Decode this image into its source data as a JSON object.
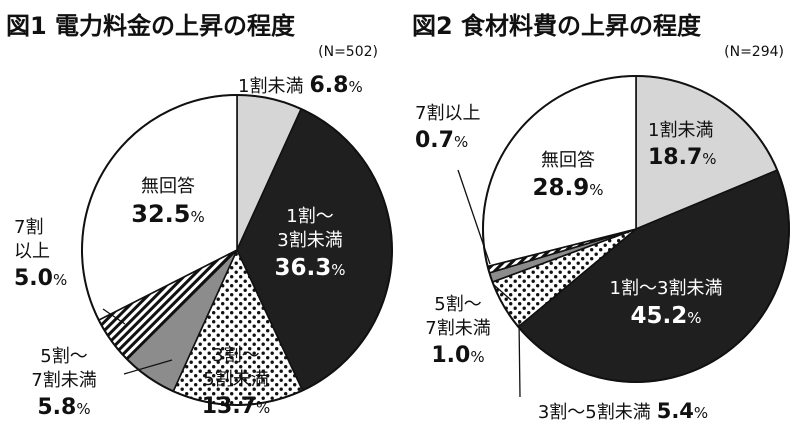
{
  "colors": {
    "ink": "#111111",
    "light_gray": "#d6d6d6",
    "black": "#1f1f1f",
    "dark_gray": "#8c8c8c",
    "white": "#ffffff"
  },
  "chart_data": [
    {
      "type": "pie",
      "title": "図1 電力料金の上昇の程度",
      "n_label": "(N=502)",
      "slices": [
        {
          "label": "1割未満",
          "value": 6.8,
          "value_text": "6.8",
          "fill": "light-gray"
        },
        {
          "label": "1割～3割未満",
          "value": 36.3,
          "value_text": "36.3",
          "fill": "black"
        },
        {
          "label": "3割～5割未満",
          "value": 13.7,
          "value_text": "13.7",
          "fill": "dots"
        },
        {
          "label": "5割～7割未満",
          "value": 5.8,
          "value_text": "5.8",
          "fill": "dark-gray"
        },
        {
          "label": "7割以上",
          "value": 5.0,
          "value_text": "5.0",
          "fill": "stripes"
        },
        {
          "label": "無回答",
          "value": 32.5,
          "value_text": "32.5",
          "fill": "white"
        }
      ]
    },
    {
      "type": "pie",
      "title": "図2 食材料費の上昇の程度",
      "n_label": "(N=294)",
      "slices": [
        {
          "label": "1割未満",
          "value": 18.7,
          "value_text": "18.7",
          "fill": "light-gray"
        },
        {
          "label": "1割～3割未満",
          "value": 45.2,
          "value_text": "45.2",
          "fill": "black"
        },
        {
          "label": "3割～5割未満",
          "value": 5.4,
          "value_text": "5.4",
          "fill": "dots"
        },
        {
          "label": "5割～7割未満",
          "value": 1.0,
          "value_text": "1.0",
          "fill": "dark-gray"
        },
        {
          "label": "7割以上",
          "value": 0.7,
          "value_text": "0.7",
          "fill": "stripes"
        },
        {
          "label": "無回答",
          "value": 28.9,
          "value_text": "28.9",
          "fill": "white"
        }
      ]
    }
  ]
}
